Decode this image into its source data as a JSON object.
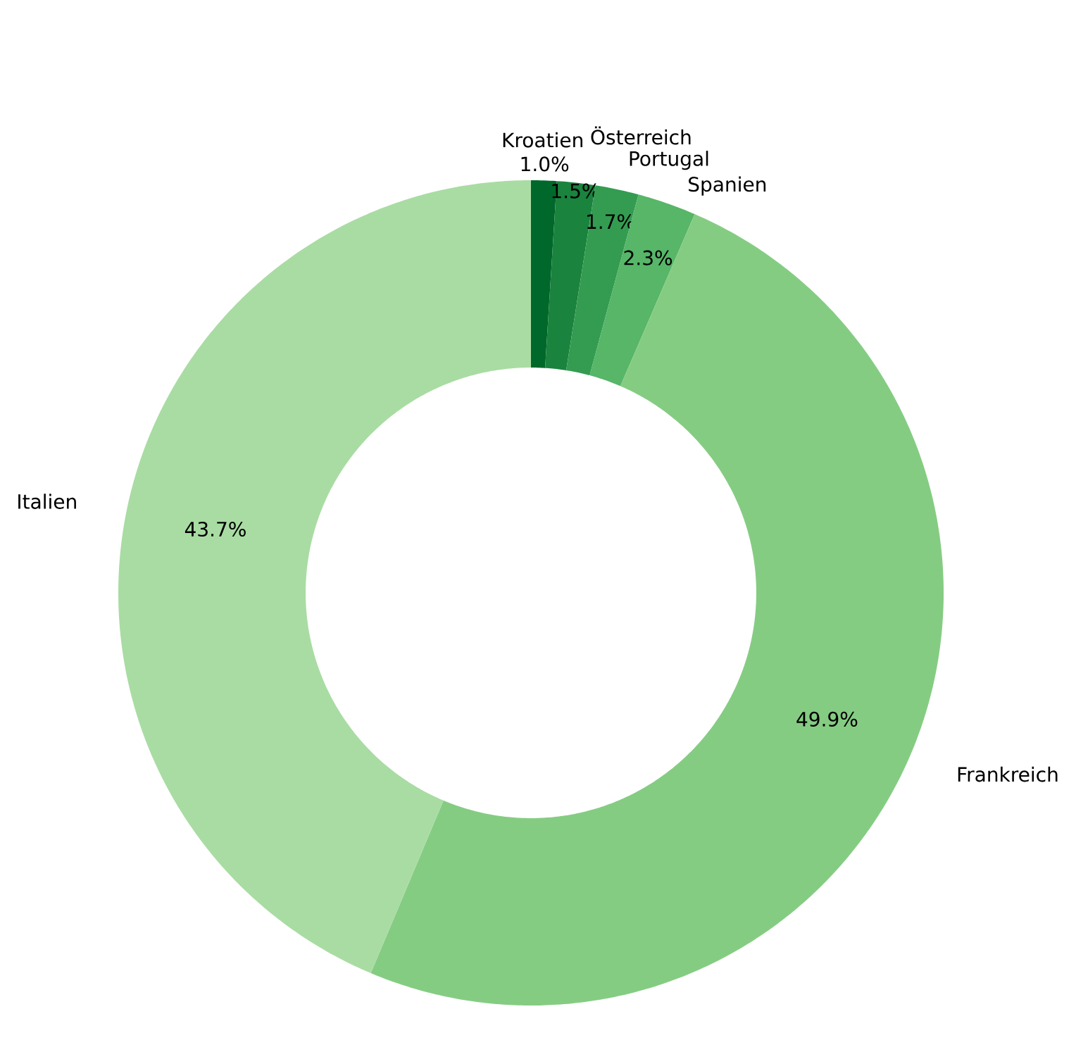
{
  "chart_data": {
    "type": "donut",
    "categories": [
      "Kroatien",
      "Österreich",
      "Portugal",
      "Spanien",
      "Frankreich",
      "Italien"
    ],
    "values": [
      1.0,
      1.5,
      1.7,
      2.3,
      49.9,
      43.7
    ],
    "value_labels": [
      "1.0%",
      "1.5%",
      "1.7%",
      "2.3%",
      "49.9%",
      "43.7%"
    ],
    "colors": [
      "#00682a",
      "#1a833e",
      "#349c51",
      "#57b668",
      "#85cc83",
      "#a9dca3"
    ],
    "legend": false
  }
}
